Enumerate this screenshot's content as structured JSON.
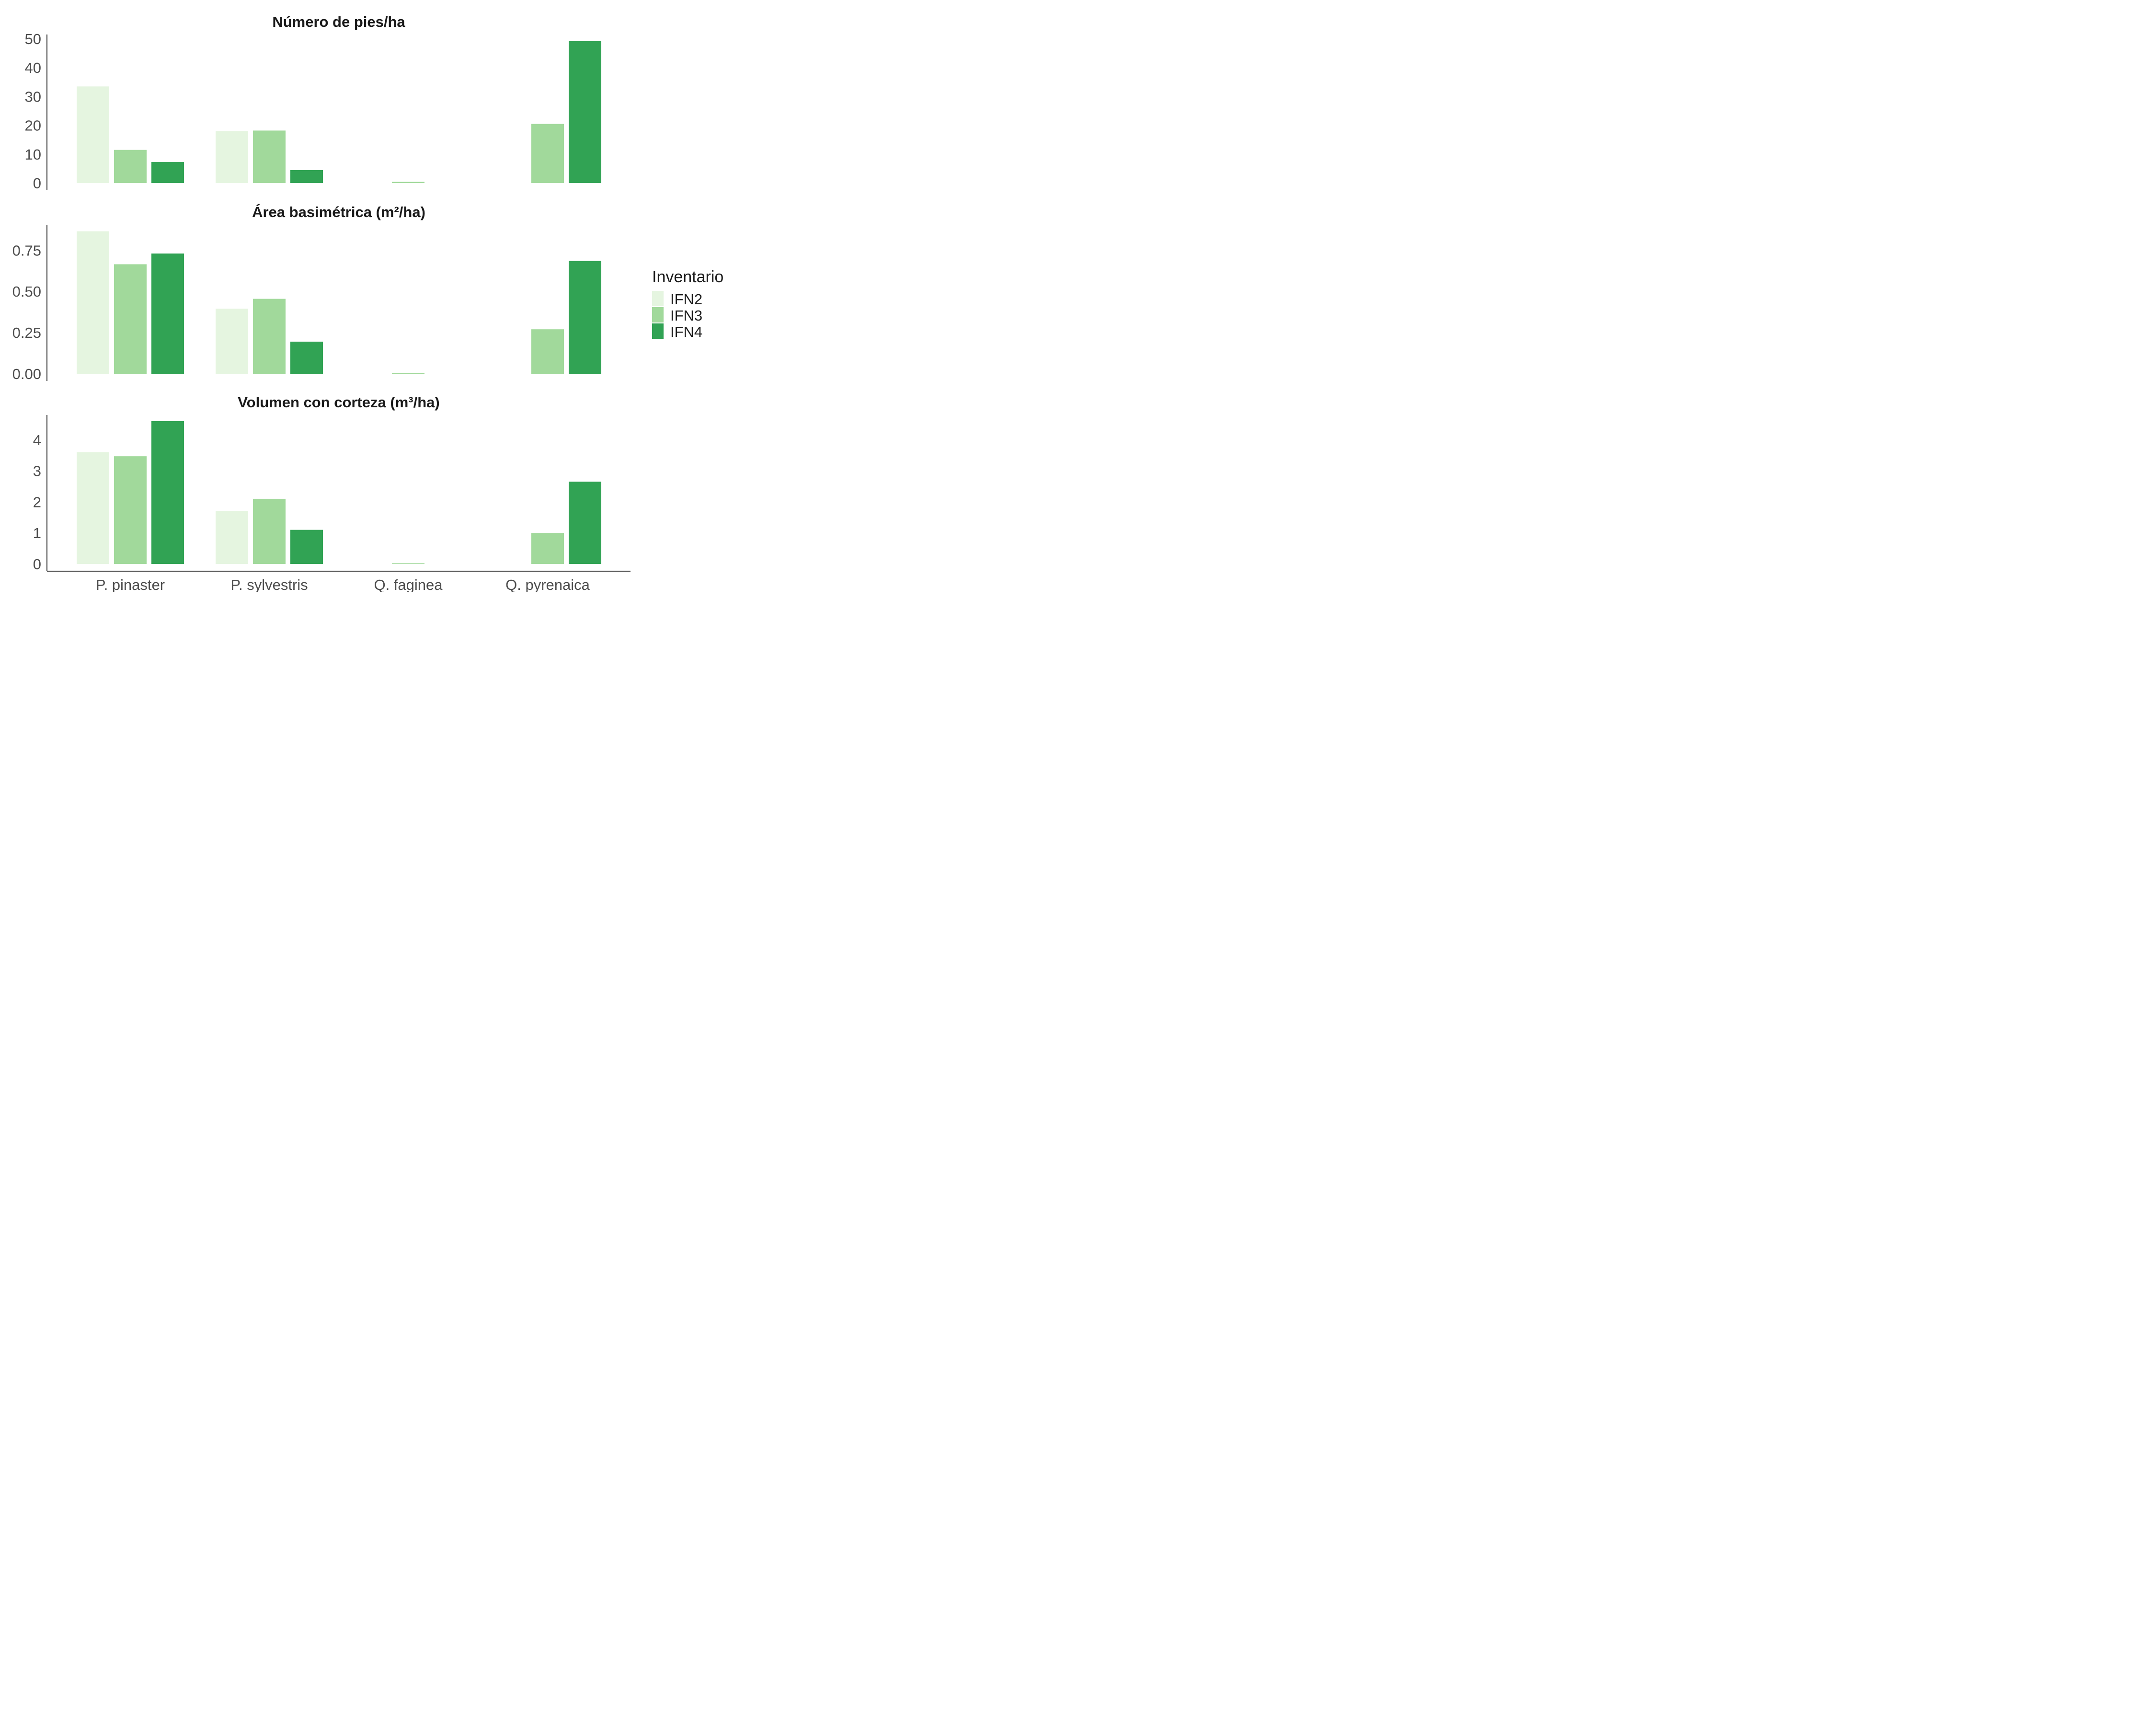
{
  "chart_data": {
    "type": "bar",
    "categories": [
      "P. pinaster",
      "P. sylvestris",
      "Q. faginea",
      "Q. pyrenaica"
    ],
    "legend": {
      "title": "Inventario",
      "placement": "right",
      "items": [
        "IFN2",
        "IFN3",
        "IFN4"
      ]
    },
    "colors": {
      "IFN2": "#e5f5e0",
      "IFN3": "#a1d99b",
      "IFN4": "#31a354"
    },
    "grid": false,
    "panels": [
      {
        "title": "Número de pies/ha",
        "ylim": [
          0,
          51.5
        ],
        "yticks": [
          0,
          10,
          20,
          30,
          40,
          50
        ],
        "ytick_labels": [
          "0",
          "10",
          "20",
          "30",
          "40",
          "50"
        ],
        "series": [
          {
            "name": "IFN2",
            "values": [
              33.5,
              18,
              0,
              0
            ]
          },
          {
            "name": "IFN3",
            "values": [
              11.5,
              18.2,
              0.4,
              20.5
            ]
          },
          {
            "name": "IFN4",
            "values": [
              7.3,
              4.5,
              0,
              49.2
            ]
          }
        ]
      },
      {
        "title": "Área basimétrica (m²/ha)",
        "ylim": [
          0,
          0.905
        ],
        "yticks": [
          0,
          0.25,
          0.5,
          0.75
        ],
        "ytick_labels": [
          "0.00",
          "0.25",
          "0.50",
          "0.75"
        ],
        "series": [
          {
            "name": "IFN2",
            "values": [
              0.865,
              0.395,
              0,
              0
            ]
          },
          {
            "name": "IFN3",
            "values": [
              0.665,
              0.455,
              0.004,
              0.27
            ]
          },
          {
            "name": "IFN4",
            "values": [
              0.73,
              0.195,
              0,
              0.685
            ]
          }
        ]
      },
      {
        "title": "Volumen con corteza (m³/ha)",
        "ylim": [
          0,
          4.8
        ],
        "yticks": [
          0,
          1,
          2,
          3,
          4
        ],
        "ytick_labels": [
          "0",
          "1",
          "2",
          "3",
          "4"
        ],
        "series": [
          {
            "name": "IFN2",
            "values": [
              3.6,
              1.7,
              0,
              0
            ]
          },
          {
            "name": "IFN3",
            "values": [
              3.47,
              2.1,
              0.02,
              1.0
            ]
          },
          {
            "name": "IFN4",
            "values": [
              4.6,
              1.1,
              0,
              2.65
            ]
          }
        ]
      }
    ]
  }
}
